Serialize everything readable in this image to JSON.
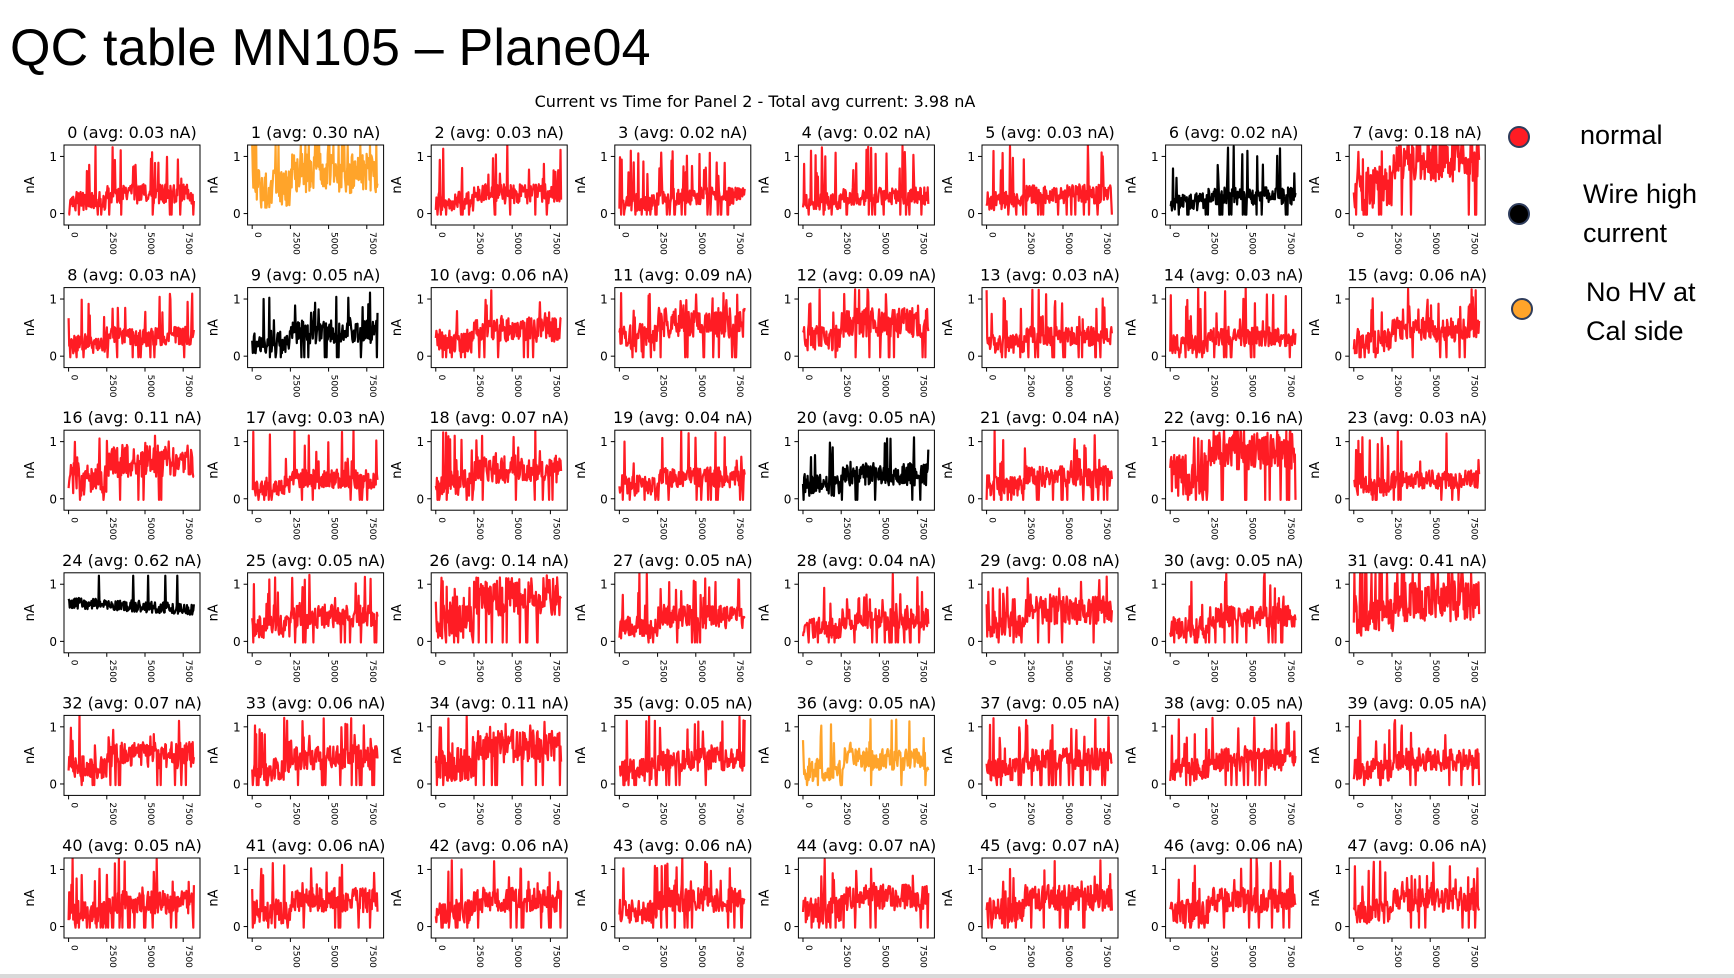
{
  "slide_title": "QC table MN105 – Plane04",
  "legend": [
    {
      "label": "normal",
      "color": "#ff1c24"
    },
    {
      "label": "Wire high current",
      "color": "#000000"
    },
    {
      "label": "No HV at Cal side",
      "color": "#ffa42a"
    }
  ],
  "chart_data": {
    "type": "line",
    "title": "Current vs Time for Panel 2 - Total avg current: 3.98 nA",
    "ylabel": "nA",
    "xlabel": "",
    "xlim": [
      -300,
      8600
    ],
    "ylim": [
      -0.2,
      1.2
    ],
    "xticks": [
      0,
      2500,
      5000,
      7500
    ],
    "xtick_labels": [
      "0",
      "2500",
      "5000",
      "7500"
    ],
    "yticks": [
      0,
      1
    ],
    "ytick_labels": [
      "0",
      "1"
    ],
    "grid": false,
    "layout": "6x8 small multiples",
    "series": [
      {
        "name": "0 (avg: 0.03 nA)",
        "avg": 0.03,
        "status": "normal"
      },
      {
        "name": "1 (avg: 0.30 nA)",
        "avg": 0.3,
        "status": "no_hv"
      },
      {
        "name": "2 (avg: 0.03 nA)",
        "avg": 0.03,
        "status": "normal"
      },
      {
        "name": "3 (avg: 0.02 nA)",
        "avg": 0.02,
        "status": "normal"
      },
      {
        "name": "4 (avg: 0.02 nA)",
        "avg": 0.02,
        "status": "normal"
      },
      {
        "name": "5 (avg: 0.03 nA)",
        "avg": 0.03,
        "status": "normal"
      },
      {
        "name": "6 (avg: 0.02 nA)",
        "avg": 0.02,
        "status": "high"
      },
      {
        "name": "7 (avg: 0.18 nA)",
        "avg": 0.18,
        "status": "normal"
      },
      {
        "name": "8 (avg: 0.03 nA)",
        "avg": 0.03,
        "status": "normal"
      },
      {
        "name": "9 (avg: 0.05 nA)",
        "avg": 0.05,
        "status": "high"
      },
      {
        "name": "10 (avg: 0.06 nA)",
        "avg": 0.06,
        "status": "normal"
      },
      {
        "name": "11 (avg: 0.09 nA)",
        "avg": 0.09,
        "status": "normal"
      },
      {
        "name": "12 (avg: 0.09 nA)",
        "avg": 0.09,
        "status": "normal"
      },
      {
        "name": "13 (avg: 0.03 nA)",
        "avg": 0.03,
        "status": "normal"
      },
      {
        "name": "14 (avg: 0.03 nA)",
        "avg": 0.03,
        "status": "normal"
      },
      {
        "name": "15 (avg: 0.06 nA)",
        "avg": 0.06,
        "status": "normal"
      },
      {
        "name": "16 (avg: 0.11 nA)",
        "avg": 0.11,
        "status": "normal"
      },
      {
        "name": "17 (avg: 0.03 nA)",
        "avg": 0.03,
        "status": "normal"
      },
      {
        "name": "18 (avg: 0.07 nA)",
        "avg": 0.07,
        "status": "normal"
      },
      {
        "name": "19 (avg: 0.04 nA)",
        "avg": 0.04,
        "status": "normal"
      },
      {
        "name": "20 (avg: 0.05 nA)",
        "avg": 0.05,
        "status": "high"
      },
      {
        "name": "21 (avg: 0.04 nA)",
        "avg": 0.04,
        "status": "normal"
      },
      {
        "name": "22 (avg: 0.16 nA)",
        "avg": 0.16,
        "status": "normal"
      },
      {
        "name": "23 (avg: 0.03 nA)",
        "avg": 0.03,
        "status": "normal"
      },
      {
        "name": "24 (avg: 0.62 nA)",
        "avg": 0.62,
        "status": "high"
      },
      {
        "name": "25 (avg: 0.05 nA)",
        "avg": 0.05,
        "status": "normal"
      },
      {
        "name": "26 (avg: 0.14 nA)",
        "avg": 0.14,
        "status": "normal"
      },
      {
        "name": "27 (avg: 0.05 nA)",
        "avg": 0.05,
        "status": "normal"
      },
      {
        "name": "28 (avg: 0.04 nA)",
        "avg": 0.04,
        "status": "normal"
      },
      {
        "name": "29 (avg: 0.08 nA)",
        "avg": 0.08,
        "status": "normal"
      },
      {
        "name": "30 (avg: 0.05 nA)",
        "avg": 0.05,
        "status": "normal"
      },
      {
        "name": "31 (avg: 0.41 nA)",
        "avg": 0.41,
        "status": "normal"
      },
      {
        "name": "32 (avg: 0.07 nA)",
        "avg": 0.07,
        "status": "normal"
      },
      {
        "name": "33 (avg: 0.06 nA)",
        "avg": 0.06,
        "status": "normal"
      },
      {
        "name": "34 (avg: 0.11 nA)",
        "avg": 0.11,
        "status": "normal"
      },
      {
        "name": "35 (avg: 0.05 nA)",
        "avg": 0.05,
        "status": "normal"
      },
      {
        "name": "36 (avg: 0.05 nA)",
        "avg": 0.05,
        "status": "no_hv"
      },
      {
        "name": "37 (avg: 0.05 nA)",
        "avg": 0.05,
        "status": "normal"
      },
      {
        "name": "38 (avg: 0.05 nA)",
        "avg": 0.05,
        "status": "normal"
      },
      {
        "name": "39 (avg: 0.05 nA)",
        "avg": 0.05,
        "status": "normal"
      },
      {
        "name": "40 (avg: 0.05 nA)",
        "avg": 0.05,
        "status": "normal"
      },
      {
        "name": "41 (avg: 0.06 nA)",
        "avg": 0.06,
        "status": "normal"
      },
      {
        "name": "42 (avg: 0.06 nA)",
        "avg": 0.06,
        "status": "normal"
      },
      {
        "name": "43 (avg: 0.06 nA)",
        "avg": 0.06,
        "status": "normal"
      },
      {
        "name": "44 (avg: 0.07 nA)",
        "avg": 0.07,
        "status": "normal"
      },
      {
        "name": "45 (avg: 0.07 nA)",
        "avg": 0.07,
        "status": "normal"
      },
      {
        "name": "46 (avg: 0.06 nA)",
        "avg": 0.06,
        "status": "normal"
      },
      {
        "name": "47 (avg: 0.06 nA)",
        "avg": 0.06,
        "status": "normal"
      }
    ],
    "status_colors": {
      "normal": "#ff1c24",
      "high": "#000000",
      "no_hv": "#ffa42a"
    }
  }
}
